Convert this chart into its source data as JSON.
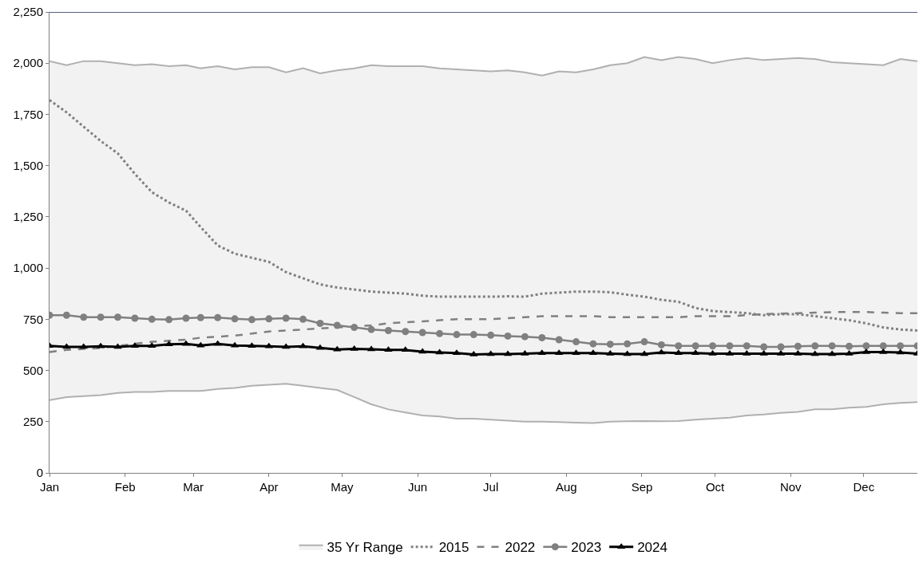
{
  "chart_data": {
    "type": "line",
    "x": [
      "--01-01",
      "--01-08",
      "--01-15",
      "--01-22",
      "--01-29",
      "--02-05",
      "--02-12",
      "--02-19",
      "--02-26",
      "--03-04",
      "--03-11",
      "--03-18",
      "--03-25",
      "--04-01",
      "--04-08",
      "--04-15",
      "--04-22",
      "--04-29",
      "--05-06",
      "--05-13",
      "--05-20",
      "--05-27",
      "--06-03",
      "--06-10",
      "--06-17",
      "--06-24",
      "--07-01",
      "--07-08",
      "--07-15",
      "--07-22",
      "--07-29",
      "--08-05",
      "--08-12",
      "--08-19",
      "--08-26",
      "--09-02",
      "--09-09",
      "--09-16",
      "--09-23",
      "--09-30",
      "--10-07",
      "--10-14",
      "--10-21",
      "--10-28",
      "--11-04",
      "--11-11",
      "--11-18",
      "--11-25",
      "--12-02",
      "--12-09",
      "--12-16",
      "--12-23"
    ],
    "series": [
      {
        "color": "#b0b0b0",
        "line_style": "solid",
        "marker": "none",
        "values": [
          355,
          370,
          375,
          380,
          390,
          395,
          395,
          400,
          400,
          400,
          410,
          415,
          425,
          430,
          435,
          425,
          415,
          405,
          370,
          335,
          310,
          295,
          280,
          275,
          265,
          265,
          260,
          255,
          250,
          250,
          248,
          245,
          243,
          250,
          252,
          253,
          252,
          253,
          260,
          265,
          270,
          280,
          285,
          293,
          298,
          310,
          310,
          318,
          322,
          335,
          342,
          345
        ]
      },
      {
        "name": "35 Yr Range",
        "type": "area",
        "color": "#f2f2f2",
        "values": [
          2010,
          1990,
          2010,
          2010,
          2000,
          1990,
          1995,
          1985,
          1990,
          1975,
          1985,
          1970,
          1980,
          1980,
          1955,
          1975,
          1950,
          1965,
          1975,
          1990,
          1985,
          1985,
          1985,
          1975,
          1970,
          1965,
          1960,
          1965,
          1955,
          1940,
          1960,
          1955,
          1970,
          1990,
          2000,
          2030,
          2015,
          2030,
          2020,
          2000,
          2015,
          2025,
          2015,
          2020,
          2025,
          2020,
          2005,
          2000,
          1995,
          1990,
          2020,
          2010
        ]
      },
      {
        "name": "2015",
        "color": "#808080",
        "line_style": "dotted",
        "marker": "none",
        "values": [
          1820,
          1760,
          1690,
          1620,
          1560,
          1460,
          1370,
          1320,
          1280,
          1200,
          1110,
          1070,
          1050,
          1030,
          980,
          950,
          920,
          905,
          895,
          885,
          880,
          875,
          865,
          860,
          860,
          860,
          860,
          862,
          860,
          875,
          880,
          885,
          885,
          882,
          870,
          860,
          845,
          835,
          805,
          790,
          785,
          780,
          770,
          775,
          775,
          765,
          755,
          745,
          730,
          710,
          700,
          695
        ]
      },
      {
        "name": "2022",
        "color": "#808080",
        "line_style": "dashed",
        "marker": "none",
        "values": [
          590,
          600,
          605,
          610,
          620,
          630,
          640,
          645,
          650,
          660,
          665,
          670,
          680,
          690,
          695,
          700,
          705,
          710,
          715,
          720,
          730,
          735,
          740,
          745,
          750,
          750,
          750,
          755,
          760,
          765,
          765,
          765,
          765,
          760,
          760,
          760,
          760,
          760,
          765,
          765,
          765,
          770,
          775,
          778,
          780,
          782,
          785,
          785,
          785,
          782,
          780,
          780
        ]
      },
      {
        "name": "2023",
        "color": "#808080",
        "line_style": "solid",
        "marker": "circle",
        "values": [
          770,
          770,
          760,
          760,
          760,
          755,
          750,
          748,
          755,
          758,
          758,
          752,
          748,
          752,
          755,
          750,
          730,
          720,
          710,
          700,
          695,
          690,
          685,
          680,
          675,
          675,
          672,
          668,
          665,
          660,
          650,
          640,
          630,
          628,
          630,
          640,
          625,
          620,
          620,
          620,
          620,
          620,
          615,
          615,
          618,
          620,
          620,
          618,
          620,
          620,
          620,
          620
        ]
      },
      {
        "name": "2024",
        "color": "#000000",
        "line_style": "solid",
        "marker": "triangle",
        "values": [
          620,
          615,
          615,
          618,
          615,
          620,
          620,
          628,
          630,
          622,
          630,
          622,
          620,
          618,
          615,
          618,
          610,
          602,
          605,
          603,
          600,
          600,
          592,
          588,
          585,
          578,
          580,
          580,
          582,
          585,
          585,
          585,
          585,
          582,
          580,
          580,
          588,
          585,
          585,
          582,
          582,
          582,
          582,
          582,
          582,
          580,
          580,
          582,
          590,
          590,
          588,
          582
        ]
      }
    ],
    "xlim": [
      "--01-01",
      "--12-23"
    ],
    "xticks": [
      {
        "value": "--01-01",
        "label": "Jan"
      },
      {
        "value": "--02-01",
        "label": "Feb"
      },
      {
        "value": "--03-01",
        "label": "Mar"
      },
      {
        "value": "--04-01",
        "label": "Apr"
      },
      {
        "value": "--05-01",
        "label": "May"
      },
      {
        "value": "--06-01",
        "label": "Jun"
      },
      {
        "value": "--07-01",
        "label": "Jul"
      },
      {
        "value": "--08-01",
        "label": "Aug"
      },
      {
        "value": "--09-01",
        "label": "Sep"
      },
      {
        "value": "--10-01",
        "label": "Oct"
      },
      {
        "value": "--11-01",
        "label": "Nov"
      },
      {
        "value": "--12-01",
        "label": "Dec"
      }
    ],
    "ylim": [
      0,
      2250
    ],
    "yticks": [
      {
        "value": 0,
        "label": "0"
      },
      {
        "value": 250,
        "label": "250"
      },
      {
        "value": 500,
        "label": "500"
      },
      {
        "value": 750,
        "label": "750"
      },
      {
        "value": 1000,
        "label": "1,000"
      },
      {
        "value": 1250,
        "label": "1,250"
      },
      {
        "value": 1500,
        "label": "1,500"
      },
      {
        "value": 1750,
        "label": "1,750"
      },
      {
        "value": 2000,
        "label": "2,000"
      },
      {
        "value": 2250,
        "label": "2,250"
      }
    ],
    "legend": "bottom"
  }
}
